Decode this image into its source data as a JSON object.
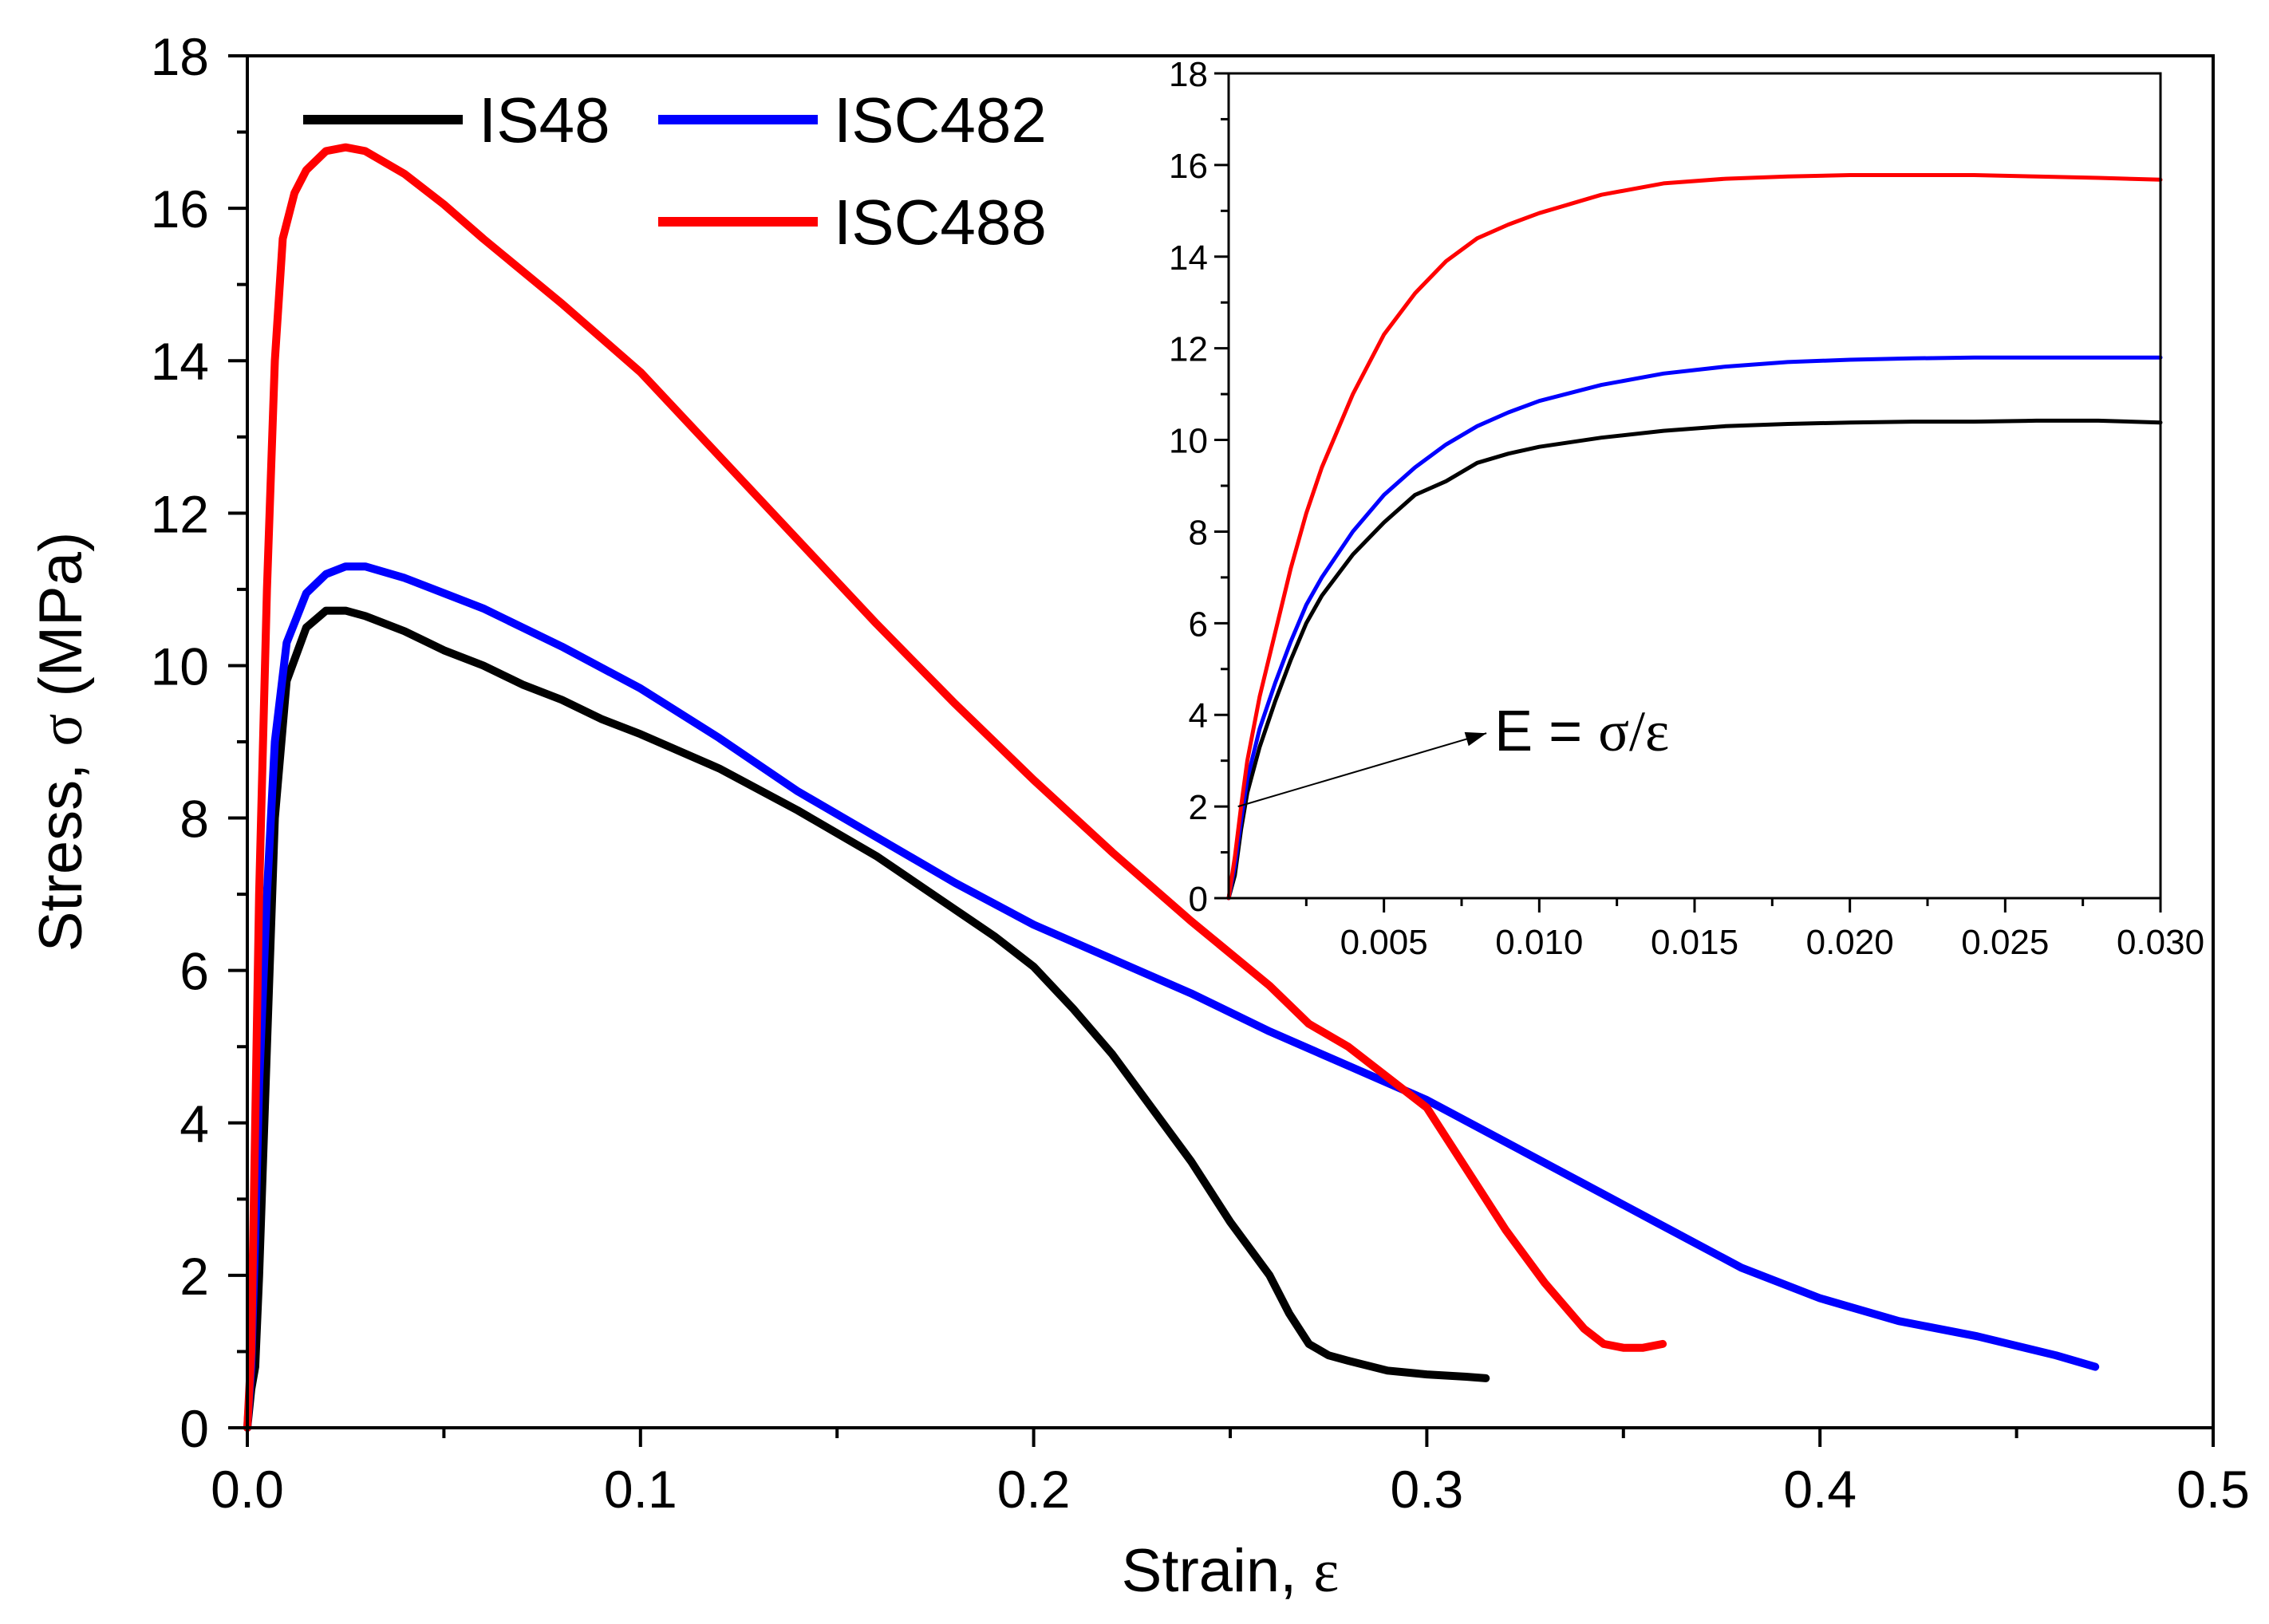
{
  "chart_data": [
    {
      "type": "line",
      "panel": "main",
      "xlabel_text": "Strain, ",
      "xlabel_symbol": "ε",
      "ylabel_text": "Stress, ",
      "ylabel_symbol": "σ",
      "ylabel_unit": " (MPa)",
      "xlim": [
        0,
        0.5
      ],
      "ylim": [
        0,
        18
      ],
      "xticks": [
        0.0,
        0.1,
        0.2,
        0.3,
        0.4,
        0.5
      ],
      "xtick_labels": [
        "0.0",
        "0.1",
        "0.2",
        "0.3",
        "0.4",
        "0.5"
      ],
      "yticks": [
        0,
        2,
        4,
        6,
        8,
        10,
        12,
        14,
        16,
        18
      ],
      "ytick_labels": [
        "0",
        "2",
        "4",
        "6",
        "8",
        "10",
        "12",
        "14",
        "16",
        "18"
      ],
      "grid": false,
      "legend_position": "top-left",
      "series": [
        {
          "name": "IS48",
          "color": "#000000",
          "x": [
            0,
            0.001,
            0.002,
            0.003,
            0.005,
            0.007,
            0.01,
            0.015,
            0.02,
            0.025,
            0.03,
            0.04,
            0.05,
            0.06,
            0.07,
            0.08,
            0.09,
            0.1,
            0.12,
            0.14,
            0.16,
            0.18,
            0.19,
            0.2,
            0.21,
            0.22,
            0.23,
            0.24,
            0.25,
            0.26,
            0.265,
            0.27,
            0.275,
            0.28,
            0.29,
            0.3,
            0.31,
            0.315
          ],
          "y": [
            0,
            0.5,
            0.8,
            2.0,
            5.0,
            8.0,
            9.8,
            10.5,
            10.72,
            10.72,
            10.65,
            10.45,
            10.2,
            10.0,
            9.75,
            9.55,
            9.3,
            9.1,
            8.65,
            8.1,
            7.5,
            6.8,
            6.45,
            6.05,
            5.5,
            4.9,
            4.2,
            3.5,
            2.7,
            2.0,
            1.5,
            1.1,
            0.95,
            0.88,
            0.75,
            0.7,
            0.67,
            0.65
          ]
        },
        {
          "name": "ISC482",
          "color": "#0000ff",
          "x": [
            0,
            0.001,
            0.002,
            0.003,
            0.005,
            0.007,
            0.01,
            0.015,
            0.02,
            0.025,
            0.03,
            0.04,
            0.05,
            0.06,
            0.08,
            0.1,
            0.12,
            0.14,
            0.16,
            0.18,
            0.2,
            0.22,
            0.24,
            0.26,
            0.28,
            0.3,
            0.32,
            0.34,
            0.36,
            0.38,
            0.4,
            0.42,
            0.44,
            0.46,
            0.47
          ],
          "y": [
            0,
            0.8,
            2.5,
            4.5,
            7.0,
            9.0,
            10.3,
            10.95,
            11.2,
            11.3,
            11.3,
            11.15,
            10.95,
            10.75,
            10.25,
            9.7,
            9.05,
            8.35,
            7.75,
            7.15,
            6.6,
            6.15,
            5.7,
            5.2,
            4.75,
            4.3,
            3.75,
            3.2,
            2.65,
            2.1,
            1.7,
            1.4,
            1.2,
            0.95,
            0.8
          ]
        },
        {
          "name": "ISC488",
          "color": "#ff0000",
          "x": [
            0,
            0.001,
            0.002,
            0.003,
            0.005,
            0.007,
            0.009,
            0.012,
            0.015,
            0.02,
            0.025,
            0.03,
            0.04,
            0.05,
            0.06,
            0.08,
            0.1,
            0.12,
            0.14,
            0.16,
            0.18,
            0.2,
            0.22,
            0.24,
            0.26,
            0.27,
            0.28,
            0.29,
            0.3,
            0.31,
            0.32,
            0.33,
            0.34,
            0.345,
            0.35,
            0.355,
            0.36
          ],
          "y": [
            0,
            1.0,
            4.0,
            7.0,
            11.0,
            14.0,
            15.6,
            16.2,
            16.5,
            16.75,
            16.8,
            16.75,
            16.45,
            16.05,
            15.6,
            14.75,
            13.85,
            12.75,
            11.65,
            10.55,
            9.5,
            8.5,
            7.55,
            6.65,
            5.8,
            5.3,
            5.0,
            4.6,
            4.2,
            3.4,
            2.6,
            1.9,
            1.3,
            1.1,
            1.05,
            1.05,
            1.1
          ]
        }
      ]
    },
    {
      "type": "line",
      "panel": "inset",
      "xlim": [
        0,
        0.03
      ],
      "ylim": [
        0,
        18
      ],
      "xticks": [
        0.005,
        0.01,
        0.015,
        0.02,
        0.025,
        0.03
      ],
      "xtick_labels": [
        "0.005",
        "0.010",
        "0.015",
        "0.020",
        "0.025",
        "0.030"
      ],
      "yticks": [
        0,
        2,
        4,
        6,
        8,
        10,
        12,
        14,
        16,
        18
      ],
      "ytick_labels": [
        "0",
        "2",
        "4",
        "6",
        "8",
        "10",
        "12",
        "14",
        "16",
        "18"
      ],
      "grid": false,
      "annotation": {
        "text": "E = ",
        "symbol": "σ/ε",
        "arrow_from": [
          0.0003,
          2.0
        ],
        "arrow_to": [
          0.0083,
          3.6
        ]
      },
      "series": [
        {
          "name": "IS48",
          "color": "#000000",
          "x": [
            0,
            0.0002,
            0.0004,
            0.0006,
            0.001,
            0.0015,
            0.002,
            0.0025,
            0.003,
            0.004,
            0.005,
            0.006,
            0.007,
            0.008,
            0.009,
            0.01,
            0.012,
            0.014,
            0.016,
            0.018,
            0.02,
            0.022,
            0.024,
            0.026,
            0.028,
            0.03
          ],
          "y": [
            0,
            0.5,
            1.5,
            2.3,
            3.3,
            4.3,
            5.2,
            6.0,
            6.6,
            7.5,
            8.2,
            8.8,
            9.1,
            9.5,
            9.7,
            9.85,
            10.05,
            10.2,
            10.3,
            10.35,
            10.38,
            10.4,
            10.4,
            10.42,
            10.42,
            10.38
          ]
        },
        {
          "name": "ISC482",
          "color": "#0000ff",
          "x": [
            0,
            0.0002,
            0.0004,
            0.0006,
            0.001,
            0.0015,
            0.002,
            0.0025,
            0.003,
            0.004,
            0.005,
            0.006,
            0.007,
            0.008,
            0.009,
            0.01,
            0.012,
            0.014,
            0.016,
            0.018,
            0.02,
            0.022,
            0.024,
            0.026,
            0.028,
            0.03
          ],
          "y": [
            0,
            0.7,
            1.7,
            2.6,
            3.7,
            4.7,
            5.6,
            6.4,
            7.0,
            8.0,
            8.8,
            9.4,
            9.9,
            10.3,
            10.6,
            10.85,
            11.2,
            11.45,
            11.6,
            11.7,
            11.75,
            11.78,
            11.8,
            11.8,
            11.8,
            11.8
          ]
        },
        {
          "name": "ISC488",
          "color": "#ff0000",
          "x": [
            0,
            0.0002,
            0.0004,
            0.0006,
            0.001,
            0.0015,
            0.002,
            0.0025,
            0.003,
            0.004,
            0.005,
            0.006,
            0.007,
            0.008,
            0.009,
            0.01,
            0.011,
            0.012,
            0.014,
            0.016,
            0.018,
            0.02,
            0.022,
            0.024,
            0.026,
            0.028,
            0.03
          ],
          "y": [
            0,
            0.9,
            2.0,
            3.0,
            4.4,
            5.8,
            7.2,
            8.4,
            9.4,
            11.0,
            12.3,
            13.2,
            13.9,
            14.4,
            14.7,
            14.95,
            15.15,
            15.35,
            15.6,
            15.7,
            15.75,
            15.78,
            15.78,
            15.78,
            15.75,
            15.72,
            15.68
          ]
        }
      ]
    }
  ]
}
